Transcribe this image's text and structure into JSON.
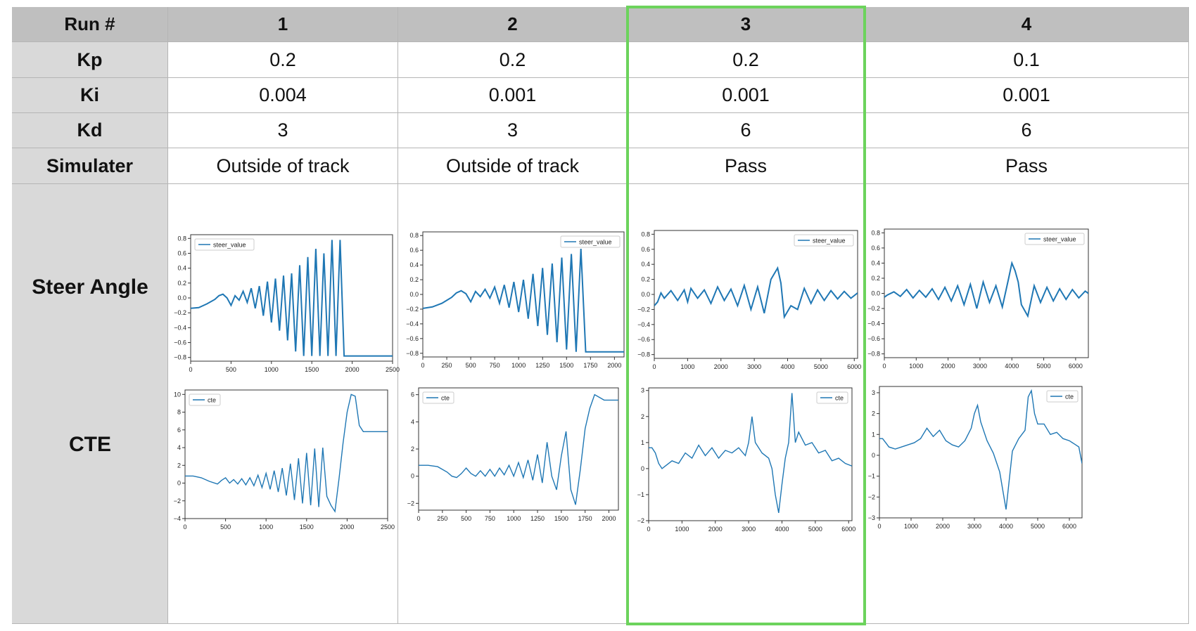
{
  "table": {
    "header_label": "Run #",
    "row_labels": [
      "Kp",
      "Ki",
      "Kd",
      "Simulater"
    ],
    "plot_row_labels": [
      "Steer Angle",
      "CTE"
    ],
    "runs": [
      {
        "run": "1",
        "kp": "0.2",
        "ki": "0.004",
        "kd": "3",
        "simulater": "Outside of track"
      },
      {
        "run": "2",
        "kp": "0.2",
        "ki": "0.001",
        "kd": "3",
        "simulater": "Outside of track"
      },
      {
        "run": "3",
        "kp": "0.2",
        "ki": "0.001",
        "kd": "6",
        "simulater": "Pass"
      },
      {
        "run": "4",
        "kp": "0.1",
        "ki": "0.001",
        "kd": "6",
        "simulater": "Pass"
      }
    ],
    "highlighted_run": "3",
    "highlight_color": "#6cd35c"
  },
  "line_color": "#1f77b4",
  "chart_data": [
    {
      "id": "steer1",
      "type": "line",
      "legend": "steer_value",
      "legend_position": "top-left",
      "xlim": [
        0,
        2500
      ],
      "ylim": [
        -0.85,
        0.85
      ],
      "xticks": [
        0,
        500,
        1000,
        1500,
        2000,
        2500
      ],
      "yticks": [
        -0.8,
        -0.6,
        -0.4,
        -0.2,
        0.0,
        0.2,
        0.4,
        0.6,
        0.8
      ],
      "ytick_labels": [
        "−0.8",
        "−0.6",
        "−0.4",
        "−0.2",
        "0.0",
        "0.2",
        "0.4",
        "0.6",
        "0.8"
      ],
      "x": [
        0,
        100,
        200,
        300,
        350,
        400,
        450,
        500,
        550,
        600,
        650,
        700,
        750,
        800,
        850,
        900,
        950,
        1000,
        1050,
        1100,
        1150,
        1200,
        1250,
        1300,
        1350,
        1400,
        1450,
        1500,
        1550,
        1600,
        1650,
        1700,
        1750,
        1800,
        1850,
        1900,
        1950,
        2000,
        2100,
        2200,
        2300,
        2400,
        2500
      ],
      "y": [
        -0.14,
        -0.13,
        -0.08,
        -0.02,
        0.03,
        0.05,
        0.0,
        -0.1,
        0.03,
        -0.03,
        0.09,
        -0.06,
        0.13,
        -0.14,
        0.16,
        -0.24,
        0.22,
        -0.33,
        0.26,
        -0.44,
        0.3,
        -0.57,
        0.33,
        -0.72,
        0.44,
        -0.78,
        0.55,
        -0.78,
        0.66,
        -0.78,
        0.6,
        -0.78,
        0.78,
        -0.78,
        0.78,
        -0.78,
        -0.78,
        -0.78,
        -0.78,
        -0.78,
        -0.78,
        -0.78,
        -0.78
      ]
    },
    {
      "id": "cte1",
      "type": "line",
      "legend": "cte",
      "legend_position": "top-left",
      "xlim": [
        0,
        2500
      ],
      "ylim": [
        -4,
        10.5
      ],
      "xticks": [
        0,
        500,
        1000,
        1500,
        2000,
        2500
      ],
      "yticks": [
        -4,
        -2,
        0,
        2,
        4,
        6,
        8,
        10
      ],
      "ytick_labels": [
        "−4",
        "−2",
        "0",
        "2",
        "4",
        "6",
        "8",
        "10"
      ],
      "x": [
        0,
        100,
        200,
        300,
        400,
        450,
        500,
        550,
        600,
        650,
        700,
        750,
        800,
        850,
        900,
        950,
        1000,
        1050,
        1100,
        1150,
        1200,
        1250,
        1300,
        1350,
        1400,
        1450,
        1500,
        1550,
        1600,
        1650,
        1700,
        1750,
        1800,
        1850,
        1900,
        1950,
        2000,
        2050,
        2100,
        2150,
        2200,
        2300,
        2400,
        2500
      ],
      "y": [
        0.8,
        0.8,
        0.6,
        0.2,
        -0.1,
        0.3,
        0.6,
        0.0,
        0.4,
        -0.1,
        0.5,
        -0.2,
        0.6,
        -0.3,
        0.9,
        -0.5,
        1.1,
        -0.7,
        1.4,
        -1.0,
        1.7,
        -1.4,
        2.2,
        -1.9,
        2.8,
        -2.3,
        3.4,
        -2.5,
        3.9,
        -2.7,
        4.0,
        -1.5,
        -2.5,
        -3.2,
        0.5,
        4.5,
        8.0,
        10.0,
        9.8,
        6.5,
        5.8,
        5.8,
        5.8,
        5.8
      ]
    },
    {
      "id": "steer2",
      "type": "line",
      "legend": "steer_value",
      "legend_position": "top-right",
      "xlim": [
        0,
        2100
      ],
      "ylim": [
        -0.85,
        0.85
      ],
      "xticks": [
        0,
        250,
        500,
        750,
        1000,
        1250,
        1500,
        1750,
        2000
      ],
      "yticks": [
        -0.8,
        -0.6,
        -0.4,
        -0.2,
        0.0,
        0.2,
        0.4,
        0.6,
        0.8
      ],
      "ytick_labels": [
        "−0.8",
        "−0.6",
        "−0.4",
        "−0.2",
        "0.0",
        "0.2",
        "0.4",
        "0.6",
        "0.8"
      ],
      "x": [
        0,
        100,
        200,
        300,
        350,
        400,
        450,
        500,
        550,
        600,
        650,
        700,
        750,
        800,
        850,
        900,
        950,
        1000,
        1050,
        1100,
        1150,
        1200,
        1250,
        1300,
        1350,
        1400,
        1450,
        1500,
        1550,
        1600,
        1650,
        1700,
        1750,
        1800,
        1850,
        1900,
        2000,
        2100
      ],
      "y": [
        -0.19,
        -0.17,
        -0.12,
        -0.04,
        0.02,
        0.05,
        0.01,
        -0.1,
        0.04,
        -0.03,
        0.07,
        -0.05,
        0.1,
        -0.12,
        0.13,
        -0.18,
        0.17,
        -0.24,
        0.2,
        -0.33,
        0.28,
        -0.43,
        0.36,
        -0.55,
        0.42,
        -0.65,
        0.5,
        -0.75,
        0.55,
        -0.78,
        0.62,
        -0.78,
        -0.78,
        -0.78,
        -0.78,
        -0.78,
        -0.78,
        -0.78
      ]
    },
    {
      "id": "cte2",
      "type": "line",
      "legend": "cte",
      "legend_position": "top-left",
      "xlim": [
        0,
        2100
      ],
      "ylim": [
        -2.5,
        6.5
      ],
      "xticks": [
        0,
        250,
        500,
        750,
        1000,
        1250,
        1500,
        1750,
        2000
      ],
      "yticks": [
        -2,
        0,
        2,
        4,
        6
      ],
      "ytick_labels": [
        "−2",
        "0",
        "2",
        "4",
        "6"
      ],
      "x": [
        0,
        100,
        200,
        300,
        350,
        400,
        450,
        500,
        550,
        600,
        650,
        700,
        750,
        800,
        850,
        900,
        950,
        1000,
        1050,
        1100,
        1150,
        1200,
        1250,
        1300,
        1350,
        1400,
        1450,
        1500,
        1550,
        1600,
        1650,
        1700,
        1750,
        1800,
        1850,
        1900,
        1950,
        2000,
        2050,
        2100
      ],
      "y": [
        0.8,
        0.8,
        0.7,
        0.3,
        0.0,
        -0.1,
        0.2,
        0.6,
        0.2,
        0.0,
        0.4,
        0.0,
        0.5,
        0.0,
        0.6,
        0.1,
        0.8,
        0.0,
        1.0,
        -0.1,
        1.2,
        -0.3,
        1.6,
        -0.5,
        2.5,
        0.0,
        -1.0,
        1.5,
        3.3,
        -1.0,
        -2.1,
        0.5,
        3.5,
        5.0,
        6.0,
        5.8,
        5.6,
        5.6,
        5.6,
        5.6
      ]
    },
    {
      "id": "steer3",
      "type": "line",
      "legend": "steer_value",
      "legend_position": "top-right",
      "xlim": [
        0,
        6100
      ],
      "ylim": [
        -0.85,
        0.85
      ],
      "xticks": [
        0,
        1000,
        2000,
        3000,
        4000,
        5000,
        6000
      ],
      "yticks": [
        -0.8,
        -0.6,
        -0.4,
        -0.2,
        0.0,
        0.2,
        0.4,
        0.6,
        0.8
      ],
      "ytick_labels": [
        "−0.8",
        "−0.6",
        "−0.4",
        "−0.2",
        "0.0",
        "0.2",
        "0.4",
        "0.6",
        "0.8"
      ],
      "x": [
        0,
        100,
        200,
        300,
        500,
        700,
        900,
        1000,
        1100,
        1300,
        1500,
        1700,
        1900,
        2100,
        2300,
        2500,
        2700,
        2900,
        3100,
        3300,
        3500,
        3700,
        3800,
        3900,
        4100,
        4300,
        4500,
        4700,
        4900,
        5100,
        5300,
        5500,
        5700,
        5900,
        6100
      ],
      "y": [
        -0.15,
        -0.1,
        0.02,
        -0.05,
        0.05,
        -0.08,
        0.06,
        -0.1,
        0.08,
        -0.05,
        0.06,
        -0.12,
        0.1,
        -0.08,
        0.07,
        -0.15,
        0.12,
        -0.2,
        0.1,
        -0.25,
        0.2,
        0.35,
        0.15,
        -0.3,
        -0.15,
        -0.2,
        0.08,
        -0.12,
        0.06,
        -0.08,
        0.05,
        -0.06,
        0.04,
        -0.05,
        0.02
      ]
    },
    {
      "id": "cte3",
      "type": "line",
      "legend": "cte",
      "legend_position": "top-right",
      "xlim": [
        0,
        6100
      ],
      "ylim": [
        -2,
        3.1
      ],
      "xticks": [
        0,
        1000,
        2000,
        3000,
        4000,
        5000,
        6000
      ],
      "yticks": [
        -2,
        -1,
        0,
        1,
        2,
        3
      ],
      "ytick_labels": [
        "−2",
        "−1",
        "0",
        "1",
        "2",
        "3"
      ],
      "x": [
        0,
        100,
        200,
        300,
        400,
        500,
        700,
        900,
        1100,
        1300,
        1500,
        1700,
        1900,
        2100,
        2300,
        2500,
        2700,
        2900,
        3000,
        3100,
        3200,
        3400,
        3600,
        3700,
        3800,
        3900,
        4000,
        4100,
        4200,
        4300,
        4400,
        4500,
        4700,
        4900,
        5100,
        5300,
        5500,
        5700,
        5900,
        6100
      ],
      "y": [
        0.8,
        0.8,
        0.6,
        0.2,
        0.0,
        0.1,
        0.3,
        0.2,
        0.6,
        0.4,
        0.9,
        0.5,
        0.8,
        0.4,
        0.7,
        0.6,
        0.8,
        0.5,
        1.0,
        2.0,
        1.0,
        0.6,
        0.4,
        0.0,
        -1.0,
        -1.7,
        -0.6,
        0.4,
        1.0,
        2.9,
        1.0,
        1.4,
        0.9,
        1.0,
        0.6,
        0.7,
        0.3,
        0.4,
        0.2,
        0.1
      ]
    },
    {
      "id": "steer4",
      "type": "line",
      "legend": "steer_value",
      "legend_position": "top-right",
      "xlim": [
        0,
        6400
      ],
      "ylim": [
        -0.85,
        0.85
      ],
      "xticks": [
        0,
        1000,
        2000,
        3000,
        4000,
        5000,
        6000
      ],
      "yticks": [
        -0.8,
        -0.6,
        -0.4,
        -0.2,
        0.0,
        0.2,
        0.4,
        0.6,
        0.8
      ],
      "ytick_labels": [
        "−0.8",
        "−0.6",
        "−0.4",
        "−0.2",
        "0.0",
        "0.2",
        "0.4",
        "0.6",
        "0.8"
      ],
      "x": [
        0,
        100,
        300,
        500,
        700,
        900,
        1100,
        1300,
        1500,
        1700,
        1900,
        2100,
        2300,
        2500,
        2700,
        2900,
        3100,
        3300,
        3500,
        3700,
        3900,
        4000,
        4100,
        4200,
        4300,
        4500,
        4700,
        4900,
        5100,
        5300,
        5500,
        5700,
        5900,
        6100,
        6300,
        6400
      ],
      "y": [
        -0.05,
        -0.02,
        0.02,
        -0.04,
        0.05,
        -0.06,
        0.04,
        -0.05,
        0.06,
        -0.08,
        0.08,
        -0.1,
        0.1,
        -0.15,
        0.12,
        -0.2,
        0.15,
        -0.12,
        0.1,
        -0.18,
        0.2,
        0.4,
        0.3,
        0.15,
        -0.15,
        -0.3,
        0.1,
        -0.12,
        0.08,
        -0.1,
        0.06,
        -0.08,
        0.05,
        -0.06,
        0.03,
        0.0
      ]
    },
    {
      "id": "cte4",
      "type": "line",
      "legend": "cte",
      "legend_position": "top-right",
      "xlim": [
        0,
        6400
      ],
      "ylim": [
        -3,
        3.3
      ],
      "xticks": [
        0,
        1000,
        2000,
        3000,
        4000,
        5000,
        6000
      ],
      "yticks": [
        -3,
        -2,
        -1,
        0,
        1,
        2,
        3
      ],
      "ytick_labels": [
        "−3",
        "−2",
        "−1",
        "0",
        "1",
        "2",
        "3"
      ],
      "x": [
        0,
        100,
        200,
        300,
        500,
        700,
        900,
        1100,
        1300,
        1500,
        1700,
        1900,
        2100,
        2300,
        2500,
        2700,
        2900,
        3000,
        3100,
        3200,
        3400,
        3600,
        3800,
        4000,
        4100,
        4200,
        4400,
        4600,
        4700,
        4800,
        4900,
        5000,
        5200,
        5400,
        5600,
        5800,
        6000,
        6200,
        6300,
        6400
      ],
      "y": [
        0.8,
        0.8,
        0.6,
        0.4,
        0.3,
        0.4,
        0.5,
        0.6,
        0.8,
        1.3,
        0.9,
        1.2,
        0.7,
        0.5,
        0.4,
        0.7,
        1.3,
        2.0,
        2.4,
        1.6,
        0.7,
        0.1,
        -0.8,
        -2.6,
        -1.2,
        0.2,
        0.8,
        1.2,
        2.8,
        3.1,
        2.0,
        1.5,
        1.5,
        1.0,
        1.1,
        0.8,
        0.7,
        0.5,
        0.4,
        -0.4
      ]
    }
  ]
}
